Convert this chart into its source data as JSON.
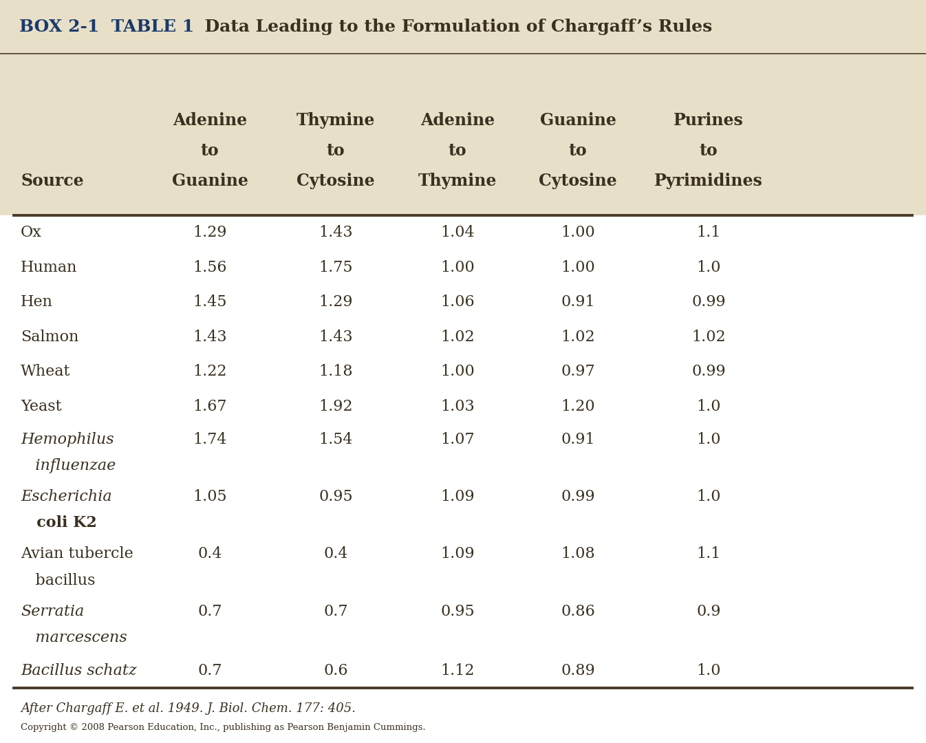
{
  "title_prefix": "BOX 2-1  TABLE 1",
  "title_text": "  Data Leading to the Formulation of Chargaff’s Rules",
  "header_bg": "#e8dfc8",
  "white_bg": "#ffffff",
  "col_headers": [
    [
      "Source",
      "",
      ""
    ],
    [
      "Adenine",
      "to",
      "Guanine"
    ],
    [
      "Thymine",
      "to",
      "Cytosine"
    ],
    [
      "Adenine",
      "to",
      "Thymine"
    ],
    [
      "Guanine",
      "to",
      "Cytosine"
    ],
    [
      "Purines",
      "to",
      "Pyrimidines"
    ]
  ],
  "rows": [
    {
      "source": [
        "Ox"
      ],
      "italic": [
        false
      ],
      "bold": [
        false
      ],
      "vals": [
        "1.29",
        "1.43",
        "1.04",
        "1.00",
        "1.1"
      ]
    },
    {
      "source": [
        "Human"
      ],
      "italic": [
        false
      ],
      "bold": [
        false
      ],
      "vals": [
        "1.56",
        "1.75",
        "1.00",
        "1.00",
        "1.0"
      ]
    },
    {
      "source": [
        "Hen"
      ],
      "italic": [
        false
      ],
      "bold": [
        false
      ],
      "vals": [
        "1.45",
        "1.29",
        "1.06",
        "0.91",
        "0.99"
      ]
    },
    {
      "source": [
        "Salmon"
      ],
      "italic": [
        false
      ],
      "bold": [
        false
      ],
      "vals": [
        "1.43",
        "1.43",
        "1.02",
        "1.02",
        "1.02"
      ]
    },
    {
      "source": [
        "Wheat"
      ],
      "italic": [
        false
      ],
      "bold": [
        false
      ],
      "vals": [
        "1.22",
        "1.18",
        "1.00",
        "0.97",
        "0.99"
      ]
    },
    {
      "source": [
        "Yeast"
      ],
      "italic": [
        false
      ],
      "bold": [
        false
      ],
      "vals": [
        "1.67",
        "1.92",
        "1.03",
        "1.20",
        "1.0"
      ]
    },
    {
      "source": [
        "Hemophilus",
        "   influenzae"
      ],
      "italic": [
        true,
        true
      ],
      "bold": [
        false,
        false
      ],
      "vals": [
        "1.74",
        "1.54",
        "1.07",
        "0.91",
        "1.0"
      ]
    },
    {
      "source": [
        "Escherichia",
        "   coli K2"
      ],
      "italic": [
        true,
        false
      ],
      "bold": [
        false,
        true
      ],
      "vals": [
        "1.05",
        "0.95",
        "1.09",
        "0.99",
        "1.0"
      ]
    },
    {
      "source": [
        "Avian tubercle",
        "   bacillus"
      ],
      "italic": [
        false,
        false
      ],
      "bold": [
        false,
        false
      ],
      "vals": [
        "0.4",
        "0.4",
        "1.09",
        "1.08",
        "1.1"
      ]
    },
    {
      "source": [
        "Serratia",
        "   marcescens"
      ],
      "italic": [
        true,
        true
      ],
      "bold": [
        false,
        false
      ],
      "vals": [
        "0.7",
        "0.7",
        "0.95",
        "0.86",
        "0.9"
      ]
    },
    {
      "source": [
        "Bacillus schatz"
      ],
      "italic": [
        true
      ],
      "bold": [
        false
      ],
      "vals": [
        "0.7",
        "0.6",
        "1.12",
        "0.89",
        "1.0"
      ]
    }
  ],
  "footer1": "After Chargaff E. et al. 1949. J. Biol. Chem. 177: 405.",
  "footer2": "Copyright © 2008 Pearson Education, Inc., publishing as Pearson Benjamin Cummings.",
  "title_color": "#1a3a6b",
  "text_color": "#3a3020",
  "line_color": "#4a3a28",
  "data_text_color": "#3a3020"
}
